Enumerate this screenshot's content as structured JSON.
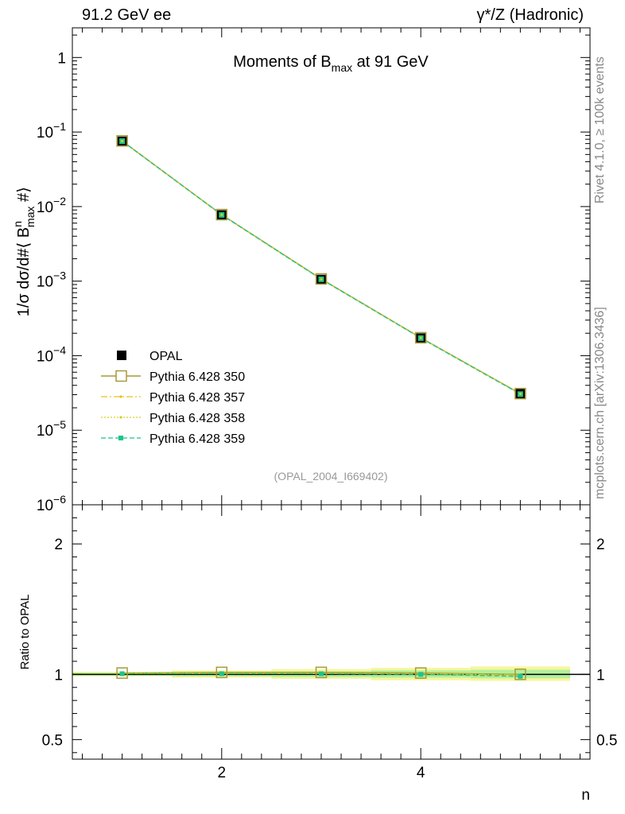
{
  "header": {
    "left": "91.2 GeV ee",
    "right": "γ*/Z (Hadronic)"
  },
  "side_labels": {
    "rivet": "Rivet 4.1.0, ≥ 100k events",
    "mcplots": "mcplots.cern.ch [arXiv:1306.3436]"
  },
  "colors": {
    "opal": "#000000",
    "p350": "#a89a3c",
    "p357": "#e8c21a",
    "p358": "#d4d020",
    "p359": "#1ec48a",
    "band_yellow": "#f5f58a",
    "band_green": "#a6ef9c"
  },
  "chart_data": [
    {
      "type": "line",
      "title": "Moments of B_max at 91 GeV",
      "ylabel": "1/σ  dσ/d#⟨ B^n_max #⟩",
      "xlabel": "n",
      "yscale": "log",
      "ylim": [
        1e-06,
        2.5
      ],
      "xlim": [
        0.5,
        5.7
      ],
      "x": [
        1,
        2,
        3,
        4,
        5
      ],
      "ytick_labels": [
        "1",
        "10^-1",
        "10^-2",
        "10^-3",
        "10^-4",
        "10^-5",
        "10^-6"
      ],
      "annotation": "(OPAL_2004_I669402)",
      "legend_placement": "lower-left",
      "series": [
        {
          "name": "OPAL",
          "values": [
            0.075,
            0.0077,
            0.00105,
            0.000172,
            3.1e-05
          ],
          "style": "markers"
        },
        {
          "name": "Pythia 6.428 350",
          "values": [
            0.076,
            0.0078,
            0.00107,
            0.000174,
            3.1e-05
          ],
          "style": "solid-open-square"
        },
        {
          "name": "Pythia 6.428 357",
          "values": [
            0.0755,
            0.00775,
            0.00106,
            0.000173,
            3.08e-05
          ],
          "style": "dashdot"
        },
        {
          "name": "Pythia 6.428 358",
          "values": [
            0.0755,
            0.00775,
            0.00106,
            0.000173,
            3.08e-05
          ],
          "style": "dotted"
        },
        {
          "name": "Pythia 6.428 359",
          "values": [
            0.0755,
            0.00774,
            0.00106,
            0.000172,
            3.05e-05
          ],
          "style": "dashed-square"
        }
      ]
    },
    {
      "type": "line",
      "ylabel": "Ratio to OPAL",
      "xlabel": "n",
      "ylim": [
        0.35,
        2.3
      ],
      "xlim": [
        0.5,
        5.7
      ],
      "yticks": [
        0.5,
        1,
        2
      ],
      "ytick_labels": [
        "0.5",
        "1",
        "2"
      ],
      "xticks": [
        2,
        4
      ],
      "xtick_labels": [
        "2",
        "4"
      ],
      "x": [
        1,
        2,
        3,
        4,
        5
      ],
      "bands": [
        {
          "x": [
            [
              0.5,
              1.5
            ],
            [
              1.5,
              2.5
            ],
            [
              2.5,
              3.5
            ],
            [
              3.5,
              4.5
            ],
            [
              4.5,
              5.5
            ]
          ],
          "low": [
            0.985,
            0.975,
            0.965,
            0.955,
            0.95
          ],
          "high": [
            1.02,
            1.03,
            1.04,
            1.05,
            1.06
          ],
          "color": "yellow"
        },
        {
          "x": [
            [
              0.5,
              1.5
            ],
            [
              1.5,
              2.5
            ],
            [
              2.5,
              3.5
            ],
            [
              3.5,
              4.5
            ],
            [
              4.5,
              5.5
            ]
          ],
          "low": [
            0.99,
            0.985,
            0.98,
            0.975,
            0.97
          ],
          "high": [
            1.012,
            1.018,
            1.022,
            1.03,
            1.035
          ],
          "color": "green"
        }
      ],
      "series": [
        {
          "name": "Pythia 6.428 350",
          "values": [
            1.01,
            1.015,
            1.015,
            1.01,
            1.0
          ]
        },
        {
          "name": "Pythia 6.428 357",
          "values": [
            1.008,
            1.008,
            1.008,
            1.005,
            0.995
          ]
        },
        {
          "name": "Pythia 6.428 358",
          "values": [
            1.007,
            1.006,
            1.006,
            1.004,
            0.994
          ]
        },
        {
          "name": "Pythia 6.428 359",
          "values": [
            1.005,
            1.005,
            1.005,
            1.0,
            0.985
          ]
        }
      ]
    }
  ]
}
